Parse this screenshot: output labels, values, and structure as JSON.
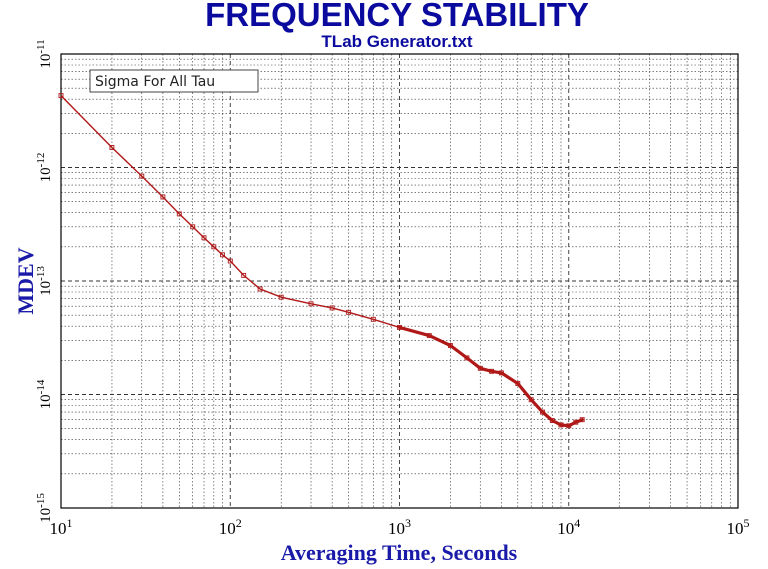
{
  "chart_data": {
    "type": "line",
    "title": "FREQUENCY STABILITY",
    "subtitle": "TLab Generator.txt",
    "xlabel": "Averaging Time, Seconds",
    "ylabel": "MDEV",
    "xscale": "log",
    "yscale": "log",
    "xlim": [
      10,
      100000
    ],
    "ylim": [
      1e-15,
      1e-11
    ],
    "grid": true,
    "legend": "Sigma For All Tau",
    "legend_position": "top-left",
    "x_ticks": [
      {
        "base": "10",
        "exp": "1"
      },
      {
        "base": "10",
        "exp": "2"
      },
      {
        "base": "10",
        "exp": "3"
      },
      {
        "base": "10",
        "exp": "4"
      },
      {
        "base": "10",
        "exp": "5"
      }
    ],
    "y_ticks": [
      {
        "base": "10",
        "exp": "-15"
      },
      {
        "base": "10",
        "exp": "-14"
      },
      {
        "base": "10",
        "exp": "-13"
      },
      {
        "base": "10",
        "exp": "-12"
      },
      {
        "base": "10",
        "exp": "-11"
      }
    ],
    "series": [
      {
        "name": "MDEV",
        "color": "#b01818",
        "x": [
          10,
          20,
          30,
          40,
          50,
          60,
          70,
          80,
          90,
          100,
          120,
          150,
          200,
          300,
          400,
          500,
          700,
          1000,
          1500,
          2000,
          2500,
          3000,
          3500,
          4000,
          5000,
          6000,
          7000,
          8000,
          9000,
          10000,
          11000,
          12000
        ],
        "y": [
          4.3e-12,
          1.5e-12,
          8.4e-13,
          5.5e-13,
          3.9e-13,
          3e-13,
          2.4e-13,
          2e-13,
          1.7e-13,
          1.5e-13,
          1.12e-13,
          8.5e-14,
          7.2e-14,
          6.3e-14,
          5.8e-14,
          5.3e-14,
          4.6e-14,
          3.9e-14,
          3.3e-14,
          2.7e-14,
          2.1e-14,
          1.7e-14,
          1.6e-14,
          1.55e-14,
          1.25e-14,
          9e-15,
          7e-15,
          5.9e-15,
          5.4e-15,
          5.3e-15,
          5.7e-15,
          6e-15
        ]
      }
    ]
  },
  "colors": {
    "title": "#0a0a9e",
    "axis_label": "#1a1aa8",
    "series": "#b01818",
    "grid": "#333333"
  }
}
